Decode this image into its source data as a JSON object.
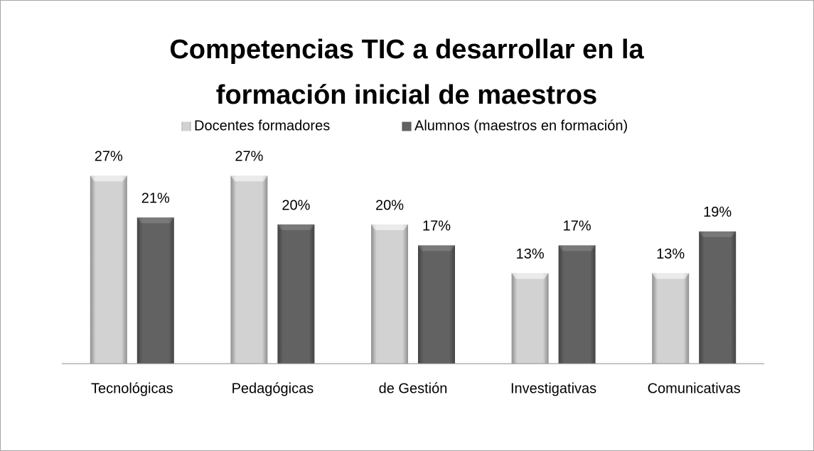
{
  "chart_data": {
    "type": "bar",
    "title": "Competencias TIC a desarrollar en la formación inicial de maestros",
    "categories": [
      "Tecnológicas",
      "Pedagógicas",
      "de Gestión",
      "Investigativas",
      "Comunicativas"
    ],
    "series": [
      {
        "name": "Docentes formadores",
        "color": "#bfbfbf",
        "values": [
          27,
          27,
          20,
          13,
          13
        ],
        "value_labels": [
          "27%",
          "27%",
          "20%",
          "13%",
          "13%"
        ]
      },
      {
        "name": "Alumnos (maestros en formación)",
        "color": "#595959",
        "values": [
          21,
          20,
          17,
          17,
          19
        ],
        "value_labels": [
          "21%",
          "20%",
          "17%",
          "17%",
          "19%"
        ]
      }
    ],
    "ylim": [
      0,
      30
    ],
    "legend": "top"
  }
}
